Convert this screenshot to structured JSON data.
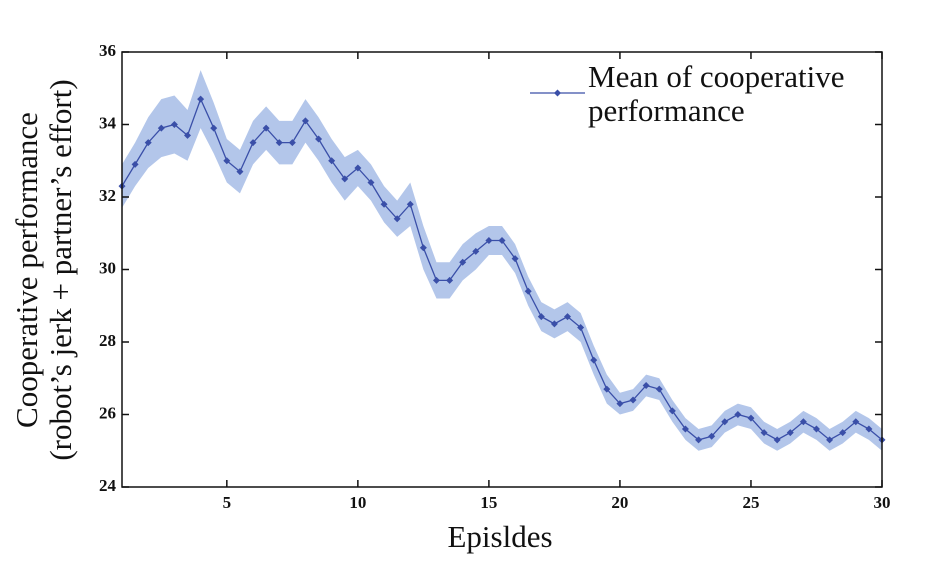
{
  "chart_data": {
    "type": "line",
    "xlabel": "Episldes",
    "ylabel": [
      "Cooperative performance",
      "(robot’s jerk + partner’s effort)"
    ],
    "xlim": [
      1,
      30
    ],
    "xticks": [
      5,
      10,
      15,
      20,
      25,
      30
    ],
    "ylim": [
      24,
      36
    ],
    "yticks": [
      24,
      26,
      28,
      30,
      32,
      34,
      36
    ],
    "legend": "upper right",
    "x": [
      1,
      1.5,
      2,
      2.5,
      3,
      3.5,
      4,
      4.5,
      5,
      5.5,
      6,
      6.5,
      7,
      7.5,
      8,
      8.5,
      9,
      9.5,
      10,
      10.5,
      11,
      11.5,
      12,
      12.5,
      13,
      13.5,
      14,
      14.5,
      15,
      15.5,
      16,
      16.5,
      17,
      17.5,
      18,
      18.5,
      19,
      19.5,
      20,
      20.5,
      21,
      21.5,
      22,
      22.5,
      23,
      23.5,
      24,
      24.5,
      25,
      25.5,
      26,
      26.5,
      27,
      27.5,
      28,
      28.5,
      29,
      29.5,
      30
    ],
    "series": [
      {
        "name": "Mean of cooperative performance",
        "color": "#3a4fa8",
        "band_color": "#b3c6ea",
        "values": [
          32.3,
          32.9,
          33.5,
          33.9,
          34.0,
          33.7,
          34.7,
          33.9,
          33.0,
          32.7,
          33.5,
          33.9,
          33.5,
          33.5,
          34.1,
          33.6,
          33.0,
          32.5,
          32.8,
          32.4,
          31.8,
          31.4,
          31.8,
          30.6,
          29.7,
          29.7,
          30.2,
          30.5,
          30.8,
          30.8,
          30.3,
          29.4,
          28.7,
          28.5,
          28.7,
          28.4,
          27.5,
          26.7,
          26.3,
          26.4,
          26.8,
          26.7,
          26.1,
          25.6,
          25.3,
          25.4,
          25.8,
          26.0,
          25.9,
          25.5,
          25.3,
          25.5,
          25.8,
          25.6,
          25.3,
          25.5,
          25.8,
          25.6,
          25.3
        ],
        "errors": [
          0.6,
          0.6,
          0.7,
          0.8,
          0.8,
          0.7,
          0.8,
          0.7,
          0.6,
          0.6,
          0.6,
          0.6,
          0.6,
          0.6,
          0.6,
          0.6,
          0.6,
          0.6,
          0.5,
          0.5,
          0.5,
          0.5,
          0.6,
          0.6,
          0.5,
          0.5,
          0.5,
          0.5,
          0.4,
          0.4,
          0.4,
          0.4,
          0.4,
          0.4,
          0.4,
          0.4,
          0.4,
          0.4,
          0.3,
          0.3,
          0.3,
          0.3,
          0.3,
          0.3,
          0.3,
          0.3,
          0.3,
          0.3,
          0.3,
          0.3,
          0.3,
          0.3,
          0.3,
          0.3,
          0.3,
          0.3,
          0.3,
          0.3,
          0.3
        ]
      }
    ]
  }
}
